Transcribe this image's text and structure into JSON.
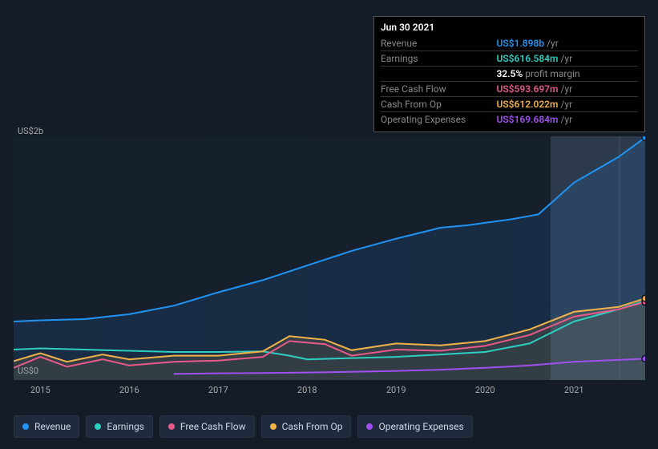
{
  "axes": {
    "ylabel_top": "US$2b",
    "ylabel_bottom": "US$0",
    "ymin": 0,
    "ymax": 2000,
    "xlabels": [
      "2015",
      "2016",
      "2017",
      "2018",
      "2019",
      "2020",
      "2021"
    ],
    "xstart": 2014.7,
    "xend": 2021.8,
    "background_color": "#141c28",
    "highlight_from_x": 2020.8
  },
  "tooltip": {
    "date": "Jun 30 2021",
    "rows": [
      {
        "label": "Revenue",
        "value": "US$1.898b",
        "color": "#2094f3",
        "suffix": "/yr"
      },
      {
        "label": "Earnings",
        "value": "US$616.584m",
        "color": "#2ecfc0",
        "suffix": "/yr"
      },
      {
        "label": "",
        "value": "32.5%",
        "color": "#ffffff",
        "suffix": "profit margin"
      },
      {
        "label": "Free Cash Flow",
        "value": "US$593.697m",
        "color": "#e85a8a",
        "suffix": "/yr"
      },
      {
        "label": "Cash From Op",
        "value": "US$612.022m",
        "color": "#f1b24a",
        "suffix": "/yr"
      },
      {
        "label": "Operating Expenses",
        "value": "US$169.684m",
        "color": "#a050f0",
        "suffix": "/yr"
      }
    ]
  },
  "series": [
    {
      "name": "Revenue",
      "color": "#2094f3",
      "fill": true,
      "points": [
        [
          2014.7,
          480
        ],
        [
          2015,
          490
        ],
        [
          2015.5,
          500
        ],
        [
          2016,
          540
        ],
        [
          2016.5,
          610
        ],
        [
          2017,
          720
        ],
        [
          2017.5,
          820
        ],
        [
          2018,
          940
        ],
        [
          2018.5,
          1060
        ],
        [
          2019,
          1160
        ],
        [
          2019.5,
          1250
        ],
        [
          2019.8,
          1270
        ],
        [
          2020,
          1290
        ],
        [
          2020.3,
          1320
        ],
        [
          2020.6,
          1360
        ],
        [
          2021,
          1620
        ],
        [
          2021.5,
          1830
        ],
        [
          2021.8,
          1990
        ]
      ]
    },
    {
      "name": "Earnings",
      "color": "#2ecfc0",
      "fill": false,
      "points": [
        [
          2014.7,
          250
        ],
        [
          2015,
          260
        ],
        [
          2015.5,
          250
        ],
        [
          2016,
          240
        ],
        [
          2016.5,
          230
        ],
        [
          2017,
          230
        ],
        [
          2017.5,
          235
        ],
        [
          2017.8,
          200
        ],
        [
          2018,
          170
        ],
        [
          2018.5,
          180
        ],
        [
          2019,
          190
        ],
        [
          2019.5,
          210
        ],
        [
          2020,
          230
        ],
        [
          2020.5,
          300
        ],
        [
          2021,
          480
        ],
        [
          2021.5,
          580
        ],
        [
          2021.8,
          650
        ]
      ]
    },
    {
      "name": "Free Cash Flow",
      "color": "#e85a8a",
      "fill": false,
      "points": [
        [
          2014.7,
          100
        ],
        [
          2015,
          190
        ],
        [
          2015.3,
          110
        ],
        [
          2015.7,
          170
        ],
        [
          2016,
          120
        ],
        [
          2016.5,
          150
        ],
        [
          2017,
          160
        ],
        [
          2017.5,
          190
        ],
        [
          2017.8,
          320
        ],
        [
          2018.2,
          295
        ],
        [
          2018.5,
          200
        ],
        [
          2019,
          250
        ],
        [
          2019.5,
          240
        ],
        [
          2020,
          280
        ],
        [
          2020.5,
          370
        ],
        [
          2021,
          520
        ],
        [
          2021.5,
          580
        ],
        [
          2021.8,
          640
        ]
      ]
    },
    {
      "name": "Cash From Op",
      "color": "#f1b24a",
      "fill": true,
      "points": [
        [
          2014.7,
          155
        ],
        [
          2015,
          220
        ],
        [
          2015.3,
          150
        ],
        [
          2015.7,
          210
        ],
        [
          2016,
          170
        ],
        [
          2016.5,
          200
        ],
        [
          2017,
          200
        ],
        [
          2017.5,
          235
        ],
        [
          2017.8,
          360
        ],
        [
          2018.2,
          330
        ],
        [
          2018.5,
          245
        ],
        [
          2019,
          300
        ],
        [
          2019.5,
          285
        ],
        [
          2020,
          320
        ],
        [
          2020.5,
          415
        ],
        [
          2021,
          560
        ],
        [
          2021.5,
          600
        ],
        [
          2021.8,
          670
        ]
      ]
    },
    {
      "name": "Operating Expenses",
      "color": "#a050f0",
      "fill": false,
      "points": [
        [
          2016.5,
          50
        ],
        [
          2017,
          55
        ],
        [
          2017.5,
          58
        ],
        [
          2018,
          62
        ],
        [
          2018.5,
          68
        ],
        [
          2019,
          75
        ],
        [
          2019.5,
          85
        ],
        [
          2020,
          100
        ],
        [
          2020.5,
          120
        ],
        [
          2021,
          150
        ],
        [
          2021.5,
          165
        ],
        [
          2021.8,
          175
        ]
      ]
    }
  ],
  "legend": [
    {
      "label": "Revenue",
      "color": "#2094f3"
    },
    {
      "label": "Earnings",
      "color": "#2ecfc0"
    },
    {
      "label": "Free Cash Flow",
      "color": "#e85a8a"
    },
    {
      "label": "Cash From Op",
      "color": "#f1b24a"
    },
    {
      "label": "Operating Expenses",
      "color": "#a050f0"
    }
  ]
}
